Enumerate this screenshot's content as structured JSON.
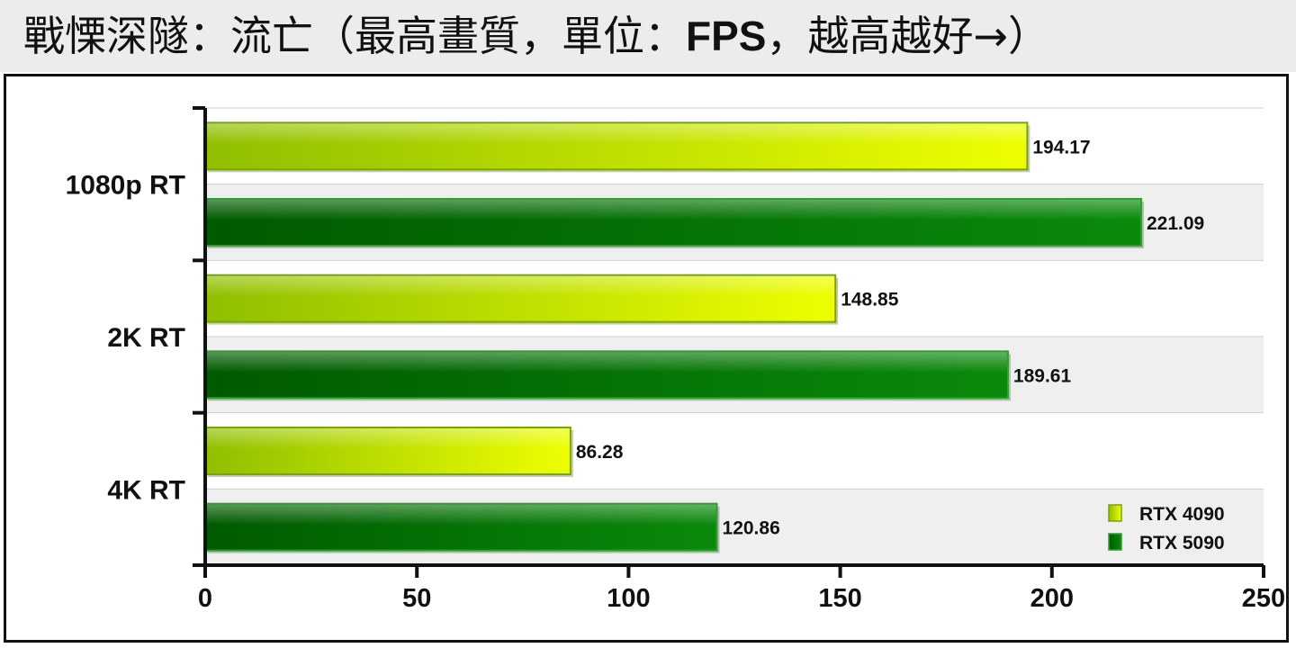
{
  "title": {
    "prefix": "戰慄深隧：流亡（最高畫質，單位：",
    "bold": "FPS",
    "suffix": "，越高越好→）"
  },
  "colors": {
    "rtx4090_start": "#8fbf00",
    "rtx4090_end": "#eeff00",
    "rtx5090_start": "#005a00",
    "rtx5090_end": "#0a8a0a",
    "band": "#efefef",
    "grid": "#cfcfcf"
  },
  "chart_data": {
    "type": "bar",
    "orientation": "horizontal",
    "categories": [
      "1080p RT",
      "2K RT",
      "4K RT"
    ],
    "series": [
      {
        "name": "RTX 4090",
        "values": [
          194.17,
          148.85,
          86.28
        ]
      },
      {
        "name": "RTX 5090",
        "values": [
          221.09,
          189.61,
          120.86
        ]
      }
    ],
    "value_labels": [
      [
        "194.17",
        "148.85",
        "86.28"
      ],
      [
        "221.09",
        "189.61",
        "120.86"
      ]
    ],
    "xlim": [
      0,
      250
    ],
    "xticks": [
      "0",
      "50",
      "100",
      "150",
      "200",
      "250"
    ],
    "xlabel": "",
    "ylabel": "",
    "legend": "bottom-right",
    "grid": true
  }
}
